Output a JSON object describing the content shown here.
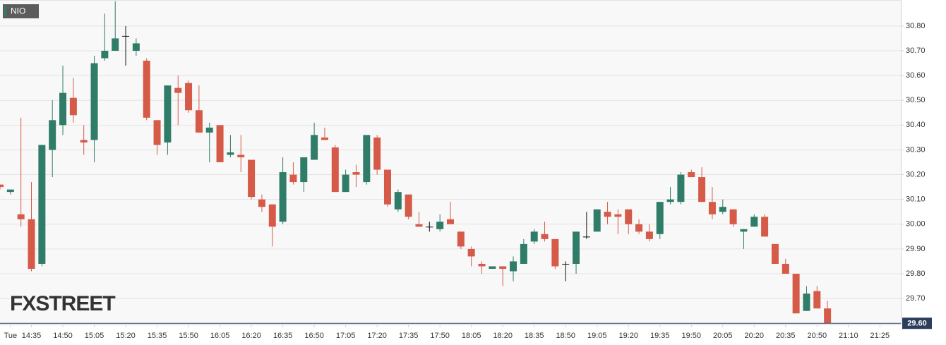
{
  "chart_data": {
    "type": "candlestick",
    "legend": "NIO",
    "watermark": "FXSTREET",
    "up_color": "#2f7d68",
    "down_color": "#d65a48",
    "doji_color": "#111111",
    "grid": true,
    "xlim": [
      "14:20",
      "21:30"
    ],
    "ylim": [
      29.595,
      30.905
    ],
    "yticks": [
      {
        "value": 29.7,
        "label": "29.70"
      },
      {
        "value": 29.8,
        "label": "29.80"
      },
      {
        "value": 29.9,
        "label": "29.90"
      },
      {
        "value": 30.0,
        "label": "30.00"
      },
      {
        "value": 30.1,
        "label": "30.10"
      },
      {
        "value": 30.2,
        "label": "30.20"
      },
      {
        "value": 30.3,
        "label": "30.30"
      },
      {
        "value": 30.4,
        "label": "30.40"
      },
      {
        "value": 30.5,
        "label": "30.50"
      },
      {
        "value": 30.6,
        "label": "30.60"
      },
      {
        "value": 30.7,
        "label": "30.70"
      },
      {
        "value": 30.8,
        "label": "30.80"
      }
    ],
    "xticks": [
      {
        "value": "14:25",
        "label": "Tue"
      },
      "14:35",
      "14:50",
      "15:05",
      "15:20",
      "15:35",
      "15:50",
      "16:05",
      "16:20",
      "16:35",
      "16:50",
      "17:05",
      "17:20",
      "17:35",
      "17:50",
      "18:05",
      "18:20",
      "18:35",
      "18:50",
      "19:05",
      "19:20",
      "19:35",
      "19:50",
      "20:05",
      "20:20",
      "20:35",
      "20:50",
      {
        "value": "21:05",
        "label": "21:10"
      },
      {
        "value": "21:20",
        "label": "21:25"
      }
    ],
    "last_price": {
      "value": 29.6,
      "label": "29.60"
    },
    "x": [
      "14:20",
      "14:25",
      "14:30",
      "14:35",
      "14:40",
      "14:45",
      "14:50",
      "14:55",
      "15:00",
      "15:05",
      "15:10",
      "15:15",
      "15:20",
      "15:25",
      "15:30",
      "15:35",
      "15:40",
      "15:45",
      "15:50",
      "15:55",
      "16:00",
      "16:05",
      "16:10",
      "16:15",
      "16:20",
      "16:25",
      "16:30",
      "16:35",
      "16:40",
      "16:45",
      "16:50",
      "16:55",
      "17:00",
      "17:05",
      "17:10",
      "17:15",
      "17:20",
      "17:25",
      "17:30",
      "17:35",
      "17:40",
      "17:45",
      "17:50",
      "17:55",
      "18:00",
      "18:05",
      "18:10",
      "18:15",
      "18:20",
      "18:25",
      "18:30",
      "18:35",
      "18:40",
      "18:45",
      "18:50",
      "18:55",
      "19:00",
      "19:05",
      "19:10",
      "19:15",
      "19:20",
      "19:25",
      "19:30",
      "19:35",
      "19:40",
      "19:45",
      "19:50",
      "19:55",
      "20:00",
      "20:05",
      "20:10",
      "20:15",
      "20:20",
      "20:25",
      "20:30",
      "20:35",
      "20:40",
      "20:45",
      "20:50",
      "20:55"
    ],
    "open": [
      30.16,
      30.13,
      30.04,
      30.02,
      29.84,
      30.3,
      30.4,
      30.51,
      30.34,
      30.34,
      30.67,
      30.7,
      30.76,
      30.7,
      30.66,
      30.42,
      30.33,
      30.55,
      30.57,
      30.46,
      30.37,
      30.4,
      30.28,
      30.28,
      30.26,
      30.1,
      30.08,
      30.01,
      30.2,
      30.17,
      30.26,
      30.35,
      30.31,
      30.13,
      30.21,
      30.17,
      30.35,
      30.22,
      30.06,
      30.12,
      30.0,
      29.99,
      29.98,
      30.02,
      29.97,
      29.9,
      29.84,
      29.82,
      29.83,
      29.81,
      29.84,
      29.93,
      29.96,
      29.94,
      29.84,
      29.84,
      29.95,
      29.97,
      30.05,
      30.04,
      30.06,
      30.0,
      29.97,
      29.96,
      30.09,
      30.09,
      30.21,
      30.19,
      30.09,
      30.05,
      30.06,
      29.97,
      29.99,
      30.03,
      29.92,
      29.84,
      29.8,
      29.65,
      29.73,
      29.66
    ],
    "high": [
      30.16,
      30.14,
      30.43,
      30.17,
      30.32,
      30.5,
      30.64,
      30.59,
      30.4,
      30.68,
      30.85,
      30.9,
      30.8,
      30.75,
      30.67,
      30.42,
      30.56,
      30.6,
      30.58,
      30.56,
      30.41,
      30.4,
      30.36,
      30.36,
      30.26,
      30.12,
      30.08,
      30.27,
      30.25,
      30.27,
      30.41,
      30.39,
      30.32,
      30.22,
      30.24,
      30.36,
      30.36,
      30.22,
      30.14,
      30.12,
      30.05,
      30.01,
      30.04,
      30.09,
      29.97,
      29.91,
      29.85,
      29.83,
      29.83,
      29.87,
      29.94,
      29.98,
      30.01,
      29.94,
      29.85,
      29.97,
      30.05,
      30.06,
      30.09,
      30.06,
      30.06,
      30.02,
      30.0,
      30.09,
      30.15,
      30.21,
      30.22,
      30.23,
      30.15,
      30.1,
      30.06,
      29.98,
      30.04,
      30.04,
      29.92,
      29.86,
      29.8,
      29.75,
      29.75,
      29.69
    ],
    "low": [
      30.14,
      30.12,
      29.99,
      29.81,
      29.83,
      30.19,
      30.36,
      30.41,
      30.28,
      30.25,
      30.66,
      30.7,
      30.64,
      30.68,
      30.42,
      30.28,
      30.28,
      30.4,
      30.45,
      30.37,
      30.25,
      30.25,
      30.27,
      30.21,
      30.1,
      30.05,
      29.91,
      30.0,
      30.16,
      30.13,
      30.26,
      30.34,
      30.13,
      30.13,
      30.15,
      30.16,
      30.2,
      30.07,
      30.05,
      30.02,
      29.99,
      29.97,
      29.97,
      30.0,
      29.9,
      29.83,
      29.8,
      29.82,
      29.75,
      29.77,
      29.84,
      29.92,
      29.93,
      29.82,
      29.77,
      29.8,
      29.94,
      29.97,
      30.0,
      29.96,
      29.96,
      29.96,
      29.93,
      29.94,
      30.08,
      30.08,
      30.19,
      30.09,
      30.02,
      30.04,
      29.99,
      29.9,
      29.99,
      29.95,
      29.84,
      29.8,
      29.64,
      29.65,
      29.66,
      29.6
    ],
    "close": [
      30.15,
      30.14,
      30.02,
      29.82,
      30.32,
      30.42,
      30.53,
      30.44,
      30.33,
      30.65,
      30.7,
      30.75,
      30.76,
      30.73,
      30.43,
      30.32,
      30.56,
      30.53,
      30.46,
      30.37,
      30.39,
      30.25,
      30.29,
      30.27,
      30.11,
      30.07,
      29.99,
      30.21,
      30.17,
      30.27,
      30.36,
      30.34,
      30.13,
      30.2,
      30.2,
      30.36,
      30.22,
      30.08,
      30.13,
      30.03,
      29.99,
      29.99,
      30.01,
      30.0,
      29.91,
      29.87,
      29.83,
      29.83,
      29.82,
      29.85,
      29.92,
      29.97,
      29.94,
      29.83,
      29.84,
      29.97,
      29.95,
      30.06,
      30.03,
      30.03,
      30.0,
      29.97,
      29.94,
      30.09,
      30.1,
      30.2,
      30.19,
      30.09,
      30.04,
      30.07,
      30.0,
      29.98,
      30.03,
      29.95,
      29.84,
      29.8,
      29.64,
      29.72,
      29.66,
      29.6
    ]
  }
}
